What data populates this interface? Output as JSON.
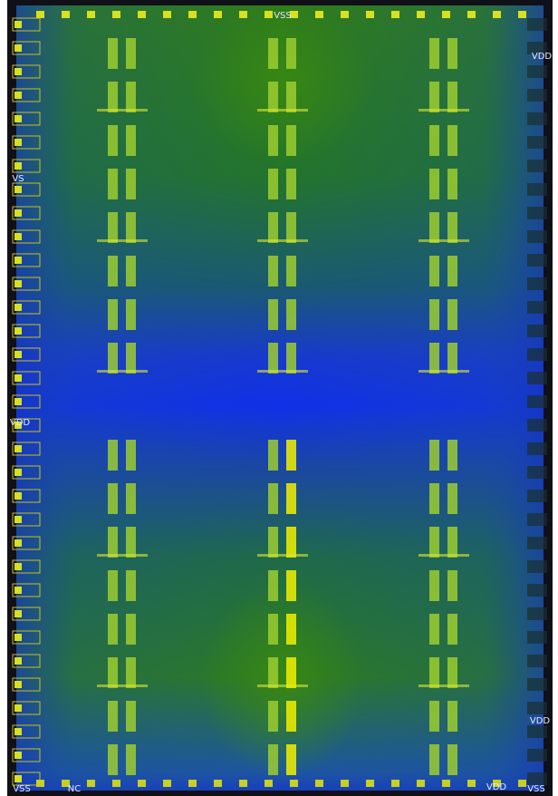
{
  "pad_labels": [
    "VSS",
    "VS",
    "VDD",
    "VDD",
    "VDD",
    "VSS",
    "NC",
    "VDD",
    "VSS"
  ]
}
